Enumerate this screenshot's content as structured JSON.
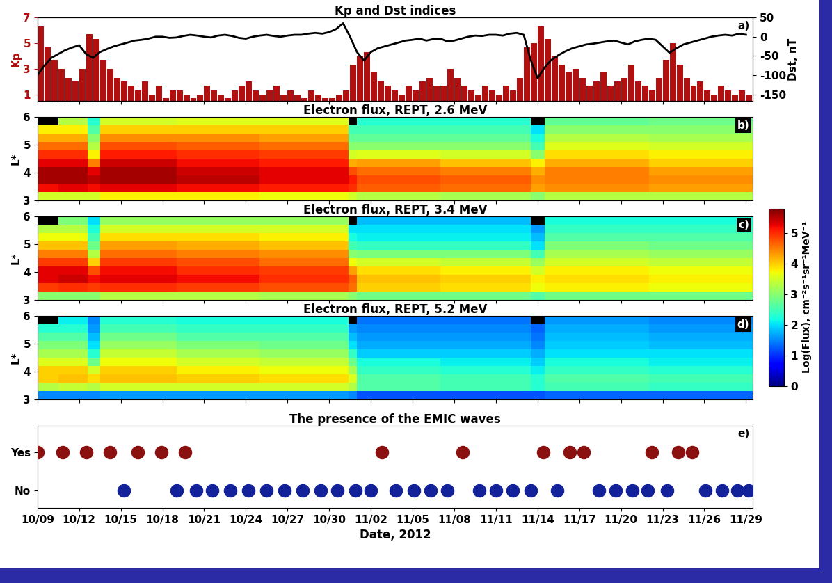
{
  "chart_data": [
    {
      "type": "bar_line",
      "title": "Kp and Dst indices",
      "ylabel": "Kp",
      "y2label": "Dst, nT",
      "xlim": [
        0,
        51.5
      ],
      "xticks": [
        0,
        3,
        6,
        9,
        12,
        15,
        18,
        21,
        24,
        27,
        30,
        33,
        36,
        39,
        42,
        45,
        48,
        51
      ],
      "ylim": [
        0.5,
        7
      ],
      "yticks": [
        1,
        3,
        5,
        7
      ],
      "y2lim": [
        -166.7,
        50
      ],
      "y2ticks": [
        -150,
        -100,
        -50,
        0,
        50
      ],
      "tick_labels": "y",
      "annotations": [
        "a)"
      ],
      "x": [
        0,
        0.5,
        1,
        1.5,
        2,
        2.5,
        3,
        3.5,
        4,
        4.5,
        5,
        5.5,
        6,
        6.5,
        7,
        7.5,
        8,
        8.5,
        9,
        9.5,
        10,
        10.5,
        11,
        11.5,
        12,
        12.5,
        13,
        13.5,
        14,
        14.5,
        15,
        15.5,
        16,
        16.5,
        17,
        17.5,
        18,
        18.5,
        19,
        19.5,
        20,
        20.5,
        21,
        21.5,
        22,
        22.5,
        23,
        23.5,
        24,
        24.5,
        25,
        25.5,
        26,
        26.5,
        27,
        27.5,
        28,
        28.5,
        29,
        29.5,
        30,
        30.5,
        31,
        31.5,
        32,
        32.5,
        33,
        33.5,
        34,
        34.5,
        35,
        35.5,
        36,
        36.5,
        37,
        37.5,
        38,
        38.5,
        39,
        39.5,
        40,
        40.5,
        41,
        41.5,
        42,
        42.5,
        43,
        43.5,
        44,
        44.5,
        45,
        45.5,
        46,
        46.5,
        47,
        47.5,
        48,
        48.5,
        49,
        49.5,
        50,
        50.5,
        51
      ],
      "series": [
        {
          "type": "bar",
          "color": "#b01010",
          "values": [
            6.3,
            4.7,
            3.7,
            3.0,
            2.3,
            2.0,
            3.0,
            5.7,
            5.3,
            3.7,
            3.0,
            2.3,
            2.0,
            1.7,
            1.3,
            2.0,
            1.0,
            1.7,
            0.7,
            1.3,
            1.3,
            1.0,
            0.7,
            1.0,
            1.7,
            1.3,
            1.0,
            0.7,
            1.3,
            1.7,
            2.0,
            1.3,
            1.0,
            1.3,
            1.7,
            1.0,
            1.3,
            1.0,
            0.7,
            1.3,
            1.0,
            0.7,
            0.7,
            1.0,
            1.3,
            3.3,
            4.0,
            4.3,
            2.7,
            2.0,
            1.7,
            1.3,
            1.0,
            1.7,
            1.3,
            2.0,
            2.3,
            1.7,
            1.7,
            3.0,
            2.3,
            1.7,
            1.3,
            1.0,
            1.7,
            1.3,
            1.0,
            1.7,
            1.3,
            2.3,
            4.7,
            5.0,
            6.3,
            5.3,
            4.0,
            3.3,
            2.7,
            3.0,
            2.3,
            1.7,
            2.0,
            2.7,
            1.7,
            2.0,
            2.3,
            3.3,
            2.0,
            1.7,
            1.3,
            2.3,
            3.7,
            5.0,
            3.3,
            2.3,
            1.7,
            2.0,
            1.3,
            1.0,
            1.7,
            1.3,
            1.0,
            1.3,
            1.0
          ]
        },
        {
          "type": "line",
          "axis": "y2",
          "color": "#000000",
          "values": [
            -100,
            -75,
            -55,
            -45,
            -35,
            -28,
            -22,
            -45,
            -55,
            -40,
            -32,
            -25,
            -20,
            -15,
            -10,
            -8,
            -5,
            0,
            0,
            -3,
            -2,
            2,
            5,
            3,
            0,
            -2,
            3,
            5,
            2,
            -3,
            -5,
            0,
            3,
            5,
            2,
            0,
            3,
            5,
            5,
            8,
            10,
            8,
            12,
            20,
            35,
            0,
            -40,
            -62,
            -40,
            -30,
            -25,
            -20,
            -15,
            -10,
            -8,
            -5,
            -10,
            -6,
            -5,
            -12,
            -10,
            -5,
            0,
            3,
            2,
            5,
            5,
            3,
            8,
            10,
            5,
            -60,
            -108,
            -80,
            -60,
            -48,
            -38,
            -30,
            -25,
            -20,
            -18,
            -15,
            -12,
            -10,
            -15,
            -20,
            -12,
            -8,
            -5,
            -8,
            -25,
            -42,
            -30,
            -20,
            -15,
            -10,
            -5,
            0,
            3,
            5,
            3,
            8,
            5
          ]
        }
      ]
    },
    {
      "type": "heatmap",
      "title": "Electron flux, REPT, 2.6 MeV",
      "ylabel": "L*",
      "xlim": [
        0,
        51.5
      ],
      "xticks": [
        0,
        3,
        6,
        9,
        12,
        15,
        18,
        21,
        24,
        27,
        30,
        33,
        36,
        39,
        42,
        45,
        48,
        51
      ],
      "ylim": [
        3,
        6
      ],
      "yticks": [
        3,
        4,
        5,
        6
      ],
      "tick_labels": "y",
      "annotations": [
        "b)"
      ],
      "color_range": [
        0,
        5.8
      ],
      "x_edges": [
        0,
        1.5,
        3.6,
        4.5,
        10,
        16,
        22.4,
        23,
        29,
        35.5,
        36.5,
        44,
        51.5
      ],
      "y_edges": [
        3.0,
        3.3,
        3.6,
        3.9,
        4.2,
        4.5,
        4.8,
        5.1,
        5.4,
        5.7,
        6.0
      ],
      "cells": [
        [
          3.5,
          3.5,
          3.5,
          3.8,
          3.8,
          3.7,
          3.5,
          3.3,
          3.2,
          3.0,
          3.3,
          3.3
        ],
        [
          5.2,
          5.3,
          5.2,
          5.3,
          5.2,
          5.1,
          5.0,
          4.7,
          4.6,
          4.3,
          4.4,
          4.3
        ],
        [
          5.6,
          5.6,
          5.5,
          5.6,
          5.5,
          5.3,
          5.1,
          4.8,
          4.7,
          4.4,
          4.5,
          4.4
        ],
        [
          5.6,
          5.6,
          5.3,
          5.6,
          5.4,
          5.3,
          4.8,
          4.6,
          4.5,
          4.2,
          4.5,
          4.3
        ],
        [
          5.3,
          5.3,
          4.5,
          5.4,
          5.2,
          5.1,
          4.2,
          4.3,
          4.1,
          3.8,
          4.2,
          4.0
        ],
        [
          5.0,
          5.0,
          3.8,
          5.1,
          5.0,
          4.9,
          3.5,
          3.6,
          3.5,
          3.0,
          3.9,
          3.8
        ],
        [
          4.6,
          4.6,
          3.3,
          4.8,
          4.7,
          4.6,
          3.0,
          3.0,
          3.0,
          2.5,
          3.6,
          3.5
        ],
        [
          4.2,
          4.2,
          3.0,
          4.4,
          4.4,
          4.3,
          2.7,
          2.7,
          2.7,
          2.2,
          3.3,
          3.2
        ],
        [
          3.8,
          3.8,
          2.6,
          4.0,
          4.0,
          4.0,
          2.5,
          2.5,
          2.5,
          2.0,
          3.0,
          3.0
        ],
        [
          null,
          3.3,
          2.3,
          3.5,
          3.6,
          3.6,
          null,
          2.3,
          2.3,
          null,
          2.7,
          2.8
        ]
      ]
    },
    {
      "type": "heatmap",
      "title": "Electron flux, REPT, 3.4 MeV",
      "ylabel": "L*",
      "xlim": [
        0,
        51.5
      ],
      "xticks": [
        0,
        3,
        6,
        9,
        12,
        15,
        18,
        21,
        24,
        27,
        30,
        33,
        36,
        39,
        42,
        45,
        48,
        51
      ],
      "ylim": [
        3,
        6
      ],
      "yticks": [
        3,
        4,
        5,
        6
      ],
      "tick_labels": "y",
      "annotations": [
        "c)"
      ],
      "color_range": [
        0,
        5.8
      ],
      "colorbar": {
        "ticks": [
          0,
          1,
          2,
          3,
          4,
          5
        ],
        "label": "Log(Flux), cm⁻²s⁻¹sr⁻¹MeV⁻¹"
      },
      "x_edges": [
        0,
        1.5,
        3.6,
        4.5,
        10,
        16,
        22.4,
        23,
        29,
        35.5,
        36.5,
        44,
        51.5
      ],
      "y_edges": [
        3.0,
        3.3,
        3.6,
        3.9,
        4.2,
        4.5,
        4.8,
        5.1,
        5.4,
        5.7,
        6.0
      ],
      "cells": [
        [
          3.0,
          3.0,
          3.0,
          3.3,
          3.3,
          3.2,
          3.0,
          2.8,
          2.8,
          2.6,
          2.8,
          2.8
        ],
        [
          4.9,
          5.0,
          4.9,
          5.0,
          4.9,
          4.8,
          4.6,
          4.0,
          3.9,
          3.7,
          3.8,
          3.7
        ],
        [
          5.3,
          5.4,
          5.2,
          5.3,
          5.2,
          5.0,
          4.7,
          4.1,
          4.0,
          3.8,
          3.9,
          3.8
        ],
        [
          5.3,
          5.3,
          4.8,
          5.2,
          5.0,
          4.9,
          4.3,
          3.9,
          3.8,
          3.5,
          3.8,
          3.7
        ],
        [
          4.9,
          4.9,
          4.0,
          4.9,
          4.8,
          4.6,
          3.7,
          3.5,
          3.4,
          3.1,
          3.5,
          3.4
        ],
        [
          4.5,
          4.5,
          3.3,
          4.6,
          4.5,
          4.4,
          3.0,
          2.9,
          2.9,
          2.5,
          3.2,
          3.1
        ],
        [
          4.1,
          4.1,
          2.8,
          4.3,
          4.2,
          4.1,
          2.5,
          2.4,
          2.4,
          2.0,
          2.9,
          2.8
        ],
        [
          3.7,
          3.7,
          2.5,
          3.9,
          3.9,
          3.8,
          2.2,
          2.1,
          2.1,
          1.8,
          2.6,
          2.6
        ],
        [
          3.3,
          3.3,
          2.2,
          3.5,
          3.5,
          3.5,
          2.0,
          2.0,
          2.0,
          1.6,
          2.4,
          2.4
        ],
        [
          null,
          2.9,
          2.0,
          3.1,
          3.1,
          3.1,
          null,
          1.8,
          1.8,
          null,
          2.2,
          2.2
        ]
      ]
    },
    {
      "type": "heatmap",
      "title": "Electron flux, REPT, 5.2 MeV",
      "ylabel": "L*",
      "xlim": [
        0,
        51.5
      ],
      "xticks": [
        0,
        3,
        6,
        9,
        12,
        15,
        18,
        21,
        24,
        27,
        30,
        33,
        36,
        39,
        42,
        45,
        48,
        51
      ],
      "ylim": [
        3,
        6
      ],
      "yticks": [
        3,
        4,
        5,
        6
      ],
      "tick_labels": "y",
      "annotations": [
        "d)"
      ],
      "color_range": [
        0,
        5.8
      ],
      "x_edges": [
        0,
        1.5,
        3.6,
        4.5,
        10,
        16,
        22.4,
        23,
        29,
        35.5,
        36.5,
        44,
        51.5
      ],
      "y_edges": [
        3.0,
        3.3,
        3.6,
        3.9,
        4.2,
        4.5,
        4.8,
        5.1,
        5.4,
        5.7,
        6.0
      ],
      "cells": [
        [
          1.5,
          1.5,
          1.5,
          1.6,
          1.6,
          1.6,
          1.5,
          1.2,
          1.2,
          1.2,
          1.3,
          1.3
        ],
        [
          3.3,
          3.4,
          3.3,
          3.5,
          3.5,
          3.5,
          3.3,
          2.6,
          2.5,
          2.3,
          2.5,
          2.4
        ],
        [
          4.0,
          4.1,
          3.9,
          4.1,
          4.0,
          3.9,
          3.6,
          2.6,
          2.5,
          2.3,
          2.6,
          2.5
        ],
        [
          4.0,
          4.0,
          3.5,
          4.0,
          3.8,
          3.7,
          3.2,
          2.4,
          2.3,
          2.1,
          2.4,
          2.3
        ],
        [
          3.6,
          3.6,
          2.8,
          3.7,
          3.5,
          3.4,
          2.8,
          2.2,
          2.1,
          1.9,
          2.2,
          2.1
        ],
        [
          3.2,
          3.2,
          2.3,
          3.4,
          3.2,
          3.1,
          2.4,
          1.9,
          1.9,
          1.7,
          2.0,
          2.0
        ],
        [
          2.9,
          2.9,
          2.0,
          3.1,
          2.9,
          2.8,
          2.0,
          1.7,
          1.7,
          1.5,
          1.9,
          1.8
        ],
        [
          2.6,
          2.6,
          1.8,
          2.8,
          2.6,
          2.6,
          1.8,
          1.6,
          1.6,
          1.4,
          1.8,
          1.7
        ],
        [
          2.3,
          2.3,
          1.6,
          2.5,
          2.4,
          2.4,
          1.6,
          1.5,
          1.5,
          1.3,
          1.7,
          1.6
        ],
        [
          null,
          2.1,
          1.5,
          2.3,
          2.2,
          2.2,
          null,
          1.4,
          1.4,
          null,
          1.6,
          1.5
        ]
      ]
    },
    {
      "type": "scatter",
      "title": "The presence of the EMIC waves",
      "xlabel": "Date, 2012",
      "xlim": [
        0,
        51.5
      ],
      "xticks": [
        {
          "value": 0,
          "label": "10/09"
        },
        {
          "value": 3,
          "label": "10/12"
        },
        {
          "value": 6,
          "label": "10/15"
        },
        {
          "value": 9,
          "label": "10/18"
        },
        {
          "value": 12,
          "label": "10/21"
        },
        {
          "value": 15,
          "label": "10/24"
        },
        {
          "value": 18,
          "label": "10/27"
        },
        {
          "value": 21,
          "label": "10/30"
        },
        {
          "value": 24,
          "label": "11/02"
        },
        {
          "value": 27,
          "label": "11/05"
        },
        {
          "value": 30,
          "label": "11/08"
        },
        {
          "value": 33,
          "label": "11/11"
        },
        {
          "value": 36,
          "label": "11/14"
        },
        {
          "value": 39,
          "label": "11/17"
        },
        {
          "value": 42,
          "label": "11/20"
        },
        {
          "value": 45,
          "label": "11/23"
        },
        {
          "value": 48,
          "label": "11/26"
        },
        {
          "value": 51,
          "label": "11/29"
        }
      ],
      "categories": [
        "No",
        "Yes"
      ],
      "annotations": [
        "e)"
      ],
      "series": [
        {
          "category": "Yes",
          "color": "#8b1010",
          "marker": "o",
          "x": [
            0.0,
            1.8,
            3.5,
            5.2,
            7.2,
            8.9,
            10.6,
            24.8,
            30.6,
            36.4,
            38.3,
            39.3,
            44.2,
            46.1,
            47.1
          ]
        },
        {
          "category": "No",
          "color": "#14229a",
          "marker": "o",
          "x": [
            6.2,
            10.0,
            11.4,
            12.6,
            13.9,
            15.2,
            16.5,
            17.8,
            19.1,
            20.4,
            21.6,
            22.9,
            24.0,
            25.8,
            27.1,
            28.3,
            29.5,
            31.8,
            33.0,
            34.2,
            35.5,
            37.4,
            40.4,
            41.6,
            42.8,
            43.9,
            45.3,
            48.1,
            49.3,
            50.4,
            51.2
          ]
        }
      ]
    }
  ]
}
